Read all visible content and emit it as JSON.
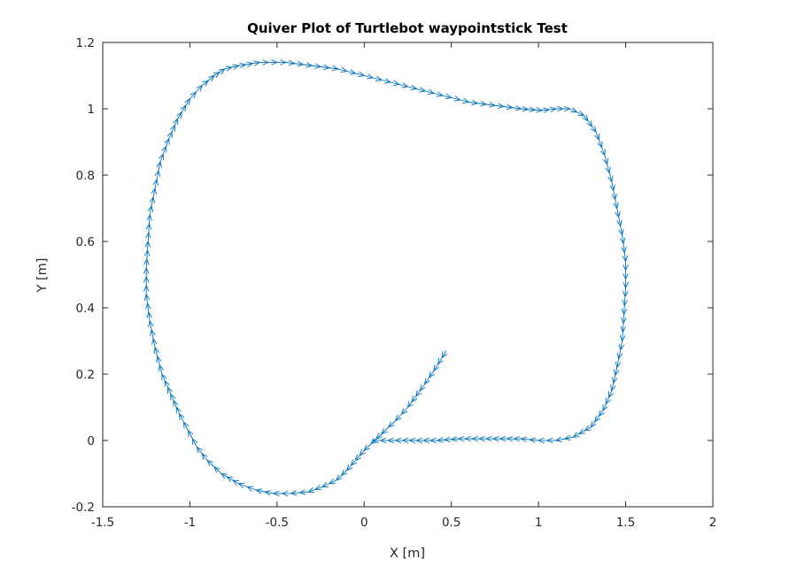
{
  "chart_data": {
    "type": "quiver",
    "title": "Quiver Plot of Turtlebot waypointstick Test",
    "xlabel": "X [m]",
    "ylabel": "Y [m]",
    "xlim": [
      -1.5,
      2
    ],
    "ylim": [
      -0.2,
      1.2
    ],
    "xticks": [
      -1.5,
      -1,
      -0.5,
      0,
      0.5,
      1,
      1.5,
      2
    ],
    "xtick_labels": [
      "-1.5",
      "-1",
      "-0.5",
      "0",
      "0.5",
      "1",
      "1.5",
      "2"
    ],
    "yticks": [
      -0.2,
      0,
      0.2,
      0.4,
      0.6,
      0.8,
      1,
      1.2
    ],
    "ytick_labels": [
      "-0.2",
      "0",
      "0.2",
      "0.4",
      "0.6",
      "0.8",
      "1",
      "1.2"
    ],
    "grid": false,
    "color": "#0072bd",
    "path": [
      [
        0.47,
        0.27
      ],
      [
        0.4,
        0.21
      ],
      [
        0.32,
        0.15
      ],
      [
        0.25,
        0.1
      ],
      [
        0.18,
        0.06
      ],
      [
        0.1,
        0.02
      ],
      [
        0.04,
        -0.01
      ],
      [
        0.0,
        -0.03
      ],
      [
        -0.05,
        -0.06
      ],
      [
        -0.1,
        -0.09
      ],
      [
        -0.16,
        -0.12
      ],
      [
        -0.24,
        -0.14
      ],
      [
        -0.32,
        -0.155
      ],
      [
        -0.42,
        -0.16
      ],
      [
        -0.52,
        -0.16
      ],
      [
        -0.62,
        -0.15
      ],
      [
        -0.72,
        -0.13
      ],
      [
        -0.82,
        -0.1
      ],
      [
        -0.9,
        -0.06
      ],
      [
        -0.96,
        -0.02
      ],
      [
        -1.01,
        0.03
      ],
      [
        -1.06,
        0.08
      ],
      [
        -1.11,
        0.14
      ],
      [
        -1.16,
        0.2
      ],
      [
        -1.2,
        0.28
      ],
      [
        -1.23,
        0.36
      ],
      [
        -1.25,
        0.44
      ],
      [
        -1.25,
        0.52
      ],
      [
        -1.24,
        0.6
      ],
      [
        -1.23,
        0.68
      ],
      [
        -1.2,
        0.76
      ],
      [
        -1.17,
        0.84
      ],
      [
        -1.12,
        0.91
      ],
      [
        -1.07,
        0.97
      ],
      [
        -1.0,
        1.03
      ],
      [
        -0.93,
        1.07
      ],
      [
        -0.86,
        1.1
      ],
      [
        -0.8,
        1.12
      ],
      [
        -0.72,
        1.13
      ],
      [
        -0.6,
        1.14
      ],
      [
        -0.45,
        1.14
      ],
      [
        -0.3,
        1.13
      ],
      [
        -0.15,
        1.12
      ],
      [
        0.0,
        1.1
      ],
      [
        0.15,
        1.08
      ],
      [
        0.3,
        1.06
      ],
      [
        0.45,
        1.04
      ],
      [
        0.6,
        1.02
      ],
      [
        0.75,
        1.01
      ],
      [
        0.9,
        1.0
      ],
      [
        1.02,
        0.995
      ],
      [
        1.1,
        1.0
      ],
      [
        1.18,
        1.0
      ],
      [
        1.26,
        0.98
      ],
      [
        1.33,
        0.93
      ],
      [
        1.38,
        0.86
      ],
      [
        1.42,
        0.78
      ],
      [
        1.45,
        0.7
      ],
      [
        1.48,
        0.62
      ],
      [
        1.5,
        0.54
      ],
      [
        1.5,
        0.46
      ],
      [
        1.49,
        0.38
      ],
      [
        1.48,
        0.3
      ],
      [
        1.45,
        0.22
      ],
      [
        1.42,
        0.15
      ],
      [
        1.37,
        0.09
      ],
      [
        1.3,
        0.04
      ],
      [
        1.2,
        0.01
      ],
      [
        1.1,
        0.0
      ],
      [
        1.0,
        0.0
      ],
      [
        0.9,
        0.005
      ],
      [
        0.78,
        0.005
      ],
      [
        0.66,
        0.005
      ],
      [
        0.54,
        0.005
      ],
      [
        0.42,
        0.0
      ],
      [
        0.3,
        0.0
      ],
      [
        0.18,
        0.0
      ],
      [
        0.05,
        0.0
      ]
    ]
  }
}
